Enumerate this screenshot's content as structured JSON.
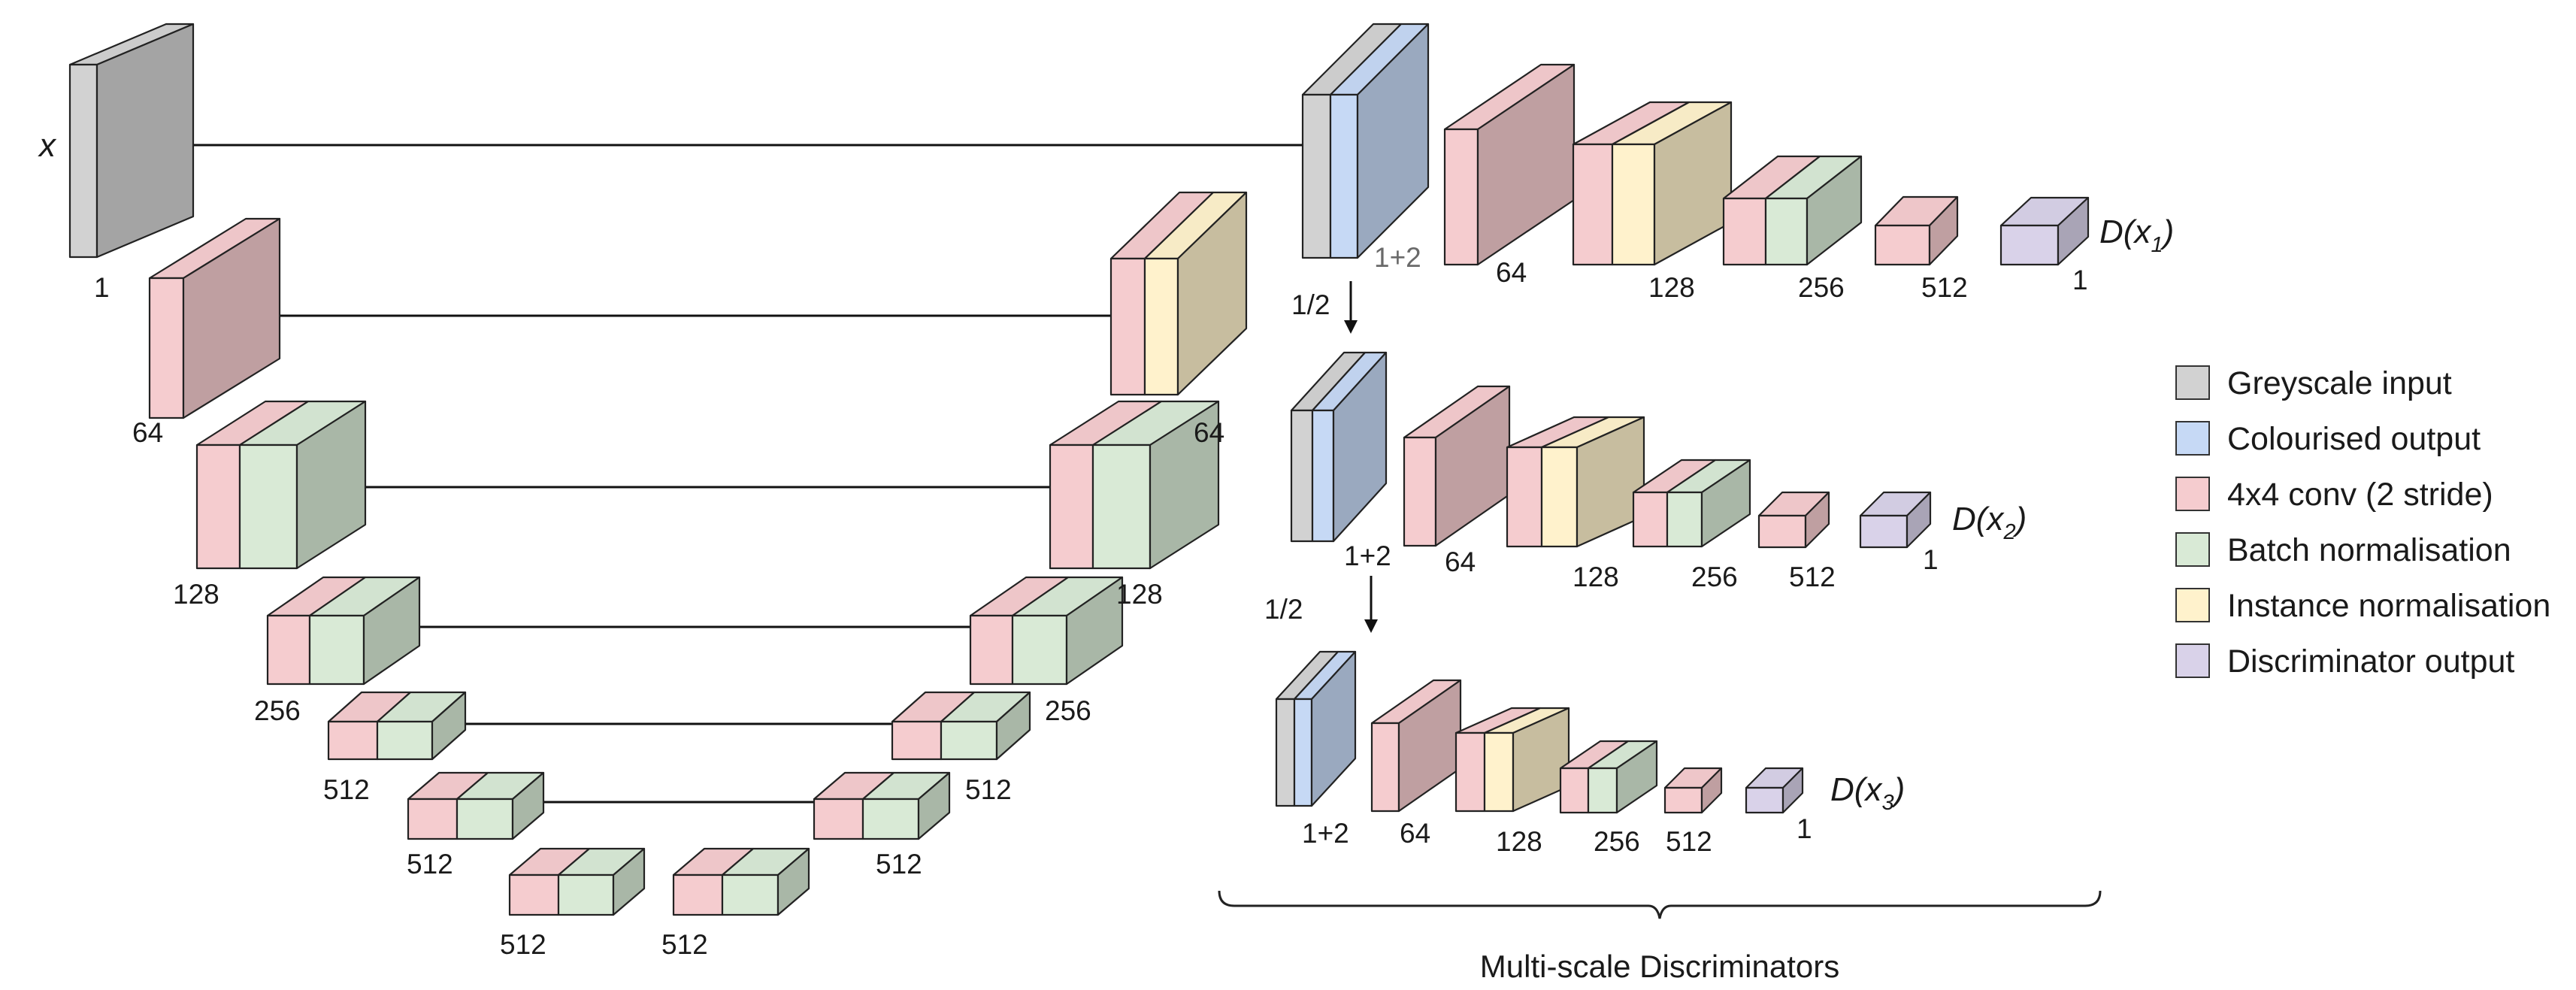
{
  "colors": {
    "grey": "#d2d2d2",
    "blue": "#c6d9f5",
    "red": "#f5cccf",
    "green": "#d9ead6",
    "yellow": "#fff2cc",
    "purple": "#d9d2e9",
    "stroke": "#222222"
  },
  "generator": {
    "input_label": "x",
    "encoder_labels": [
      "1",
      "64",
      "128",
      "256",
      "512",
      "512",
      "512"
    ],
    "decoder_labels": [
      "512",
      "512",
      "512",
      "256",
      "128",
      "64"
    ]
  },
  "discriminators": [
    {
      "labels": [
        "1+2",
        "64",
        "128",
        "256",
        "512",
        "1"
      ],
      "output_main": "D(x",
      "output_sub": "1",
      "output_close": ")"
    },
    {
      "labels": [
        "1+2",
        "64",
        "128",
        "256",
        "512",
        "1"
      ],
      "output_main": "D(x",
      "output_sub": "2",
      "output_close": ")"
    },
    {
      "labels": [
        "1+2",
        "64",
        "128",
        "256",
        "512",
        "1"
      ],
      "output_main": "D(x",
      "output_sub": "3",
      "output_close": ")"
    }
  ],
  "downscale_labels": [
    "1/2",
    "1/2"
  ],
  "caption": "Multi-scale Discriminators",
  "legend": [
    {
      "key": "grey",
      "label": "Greyscale input"
    },
    {
      "key": "blue",
      "label": "Colourised output"
    },
    {
      "key": "red",
      "label": "4x4 conv (2 stride)"
    },
    {
      "key": "green",
      "label": "Batch normalisation"
    },
    {
      "key": "yellow",
      "label": "Instance normalisation"
    },
    {
      "key": "purple",
      "label": "Discriminator output"
    }
  ]
}
